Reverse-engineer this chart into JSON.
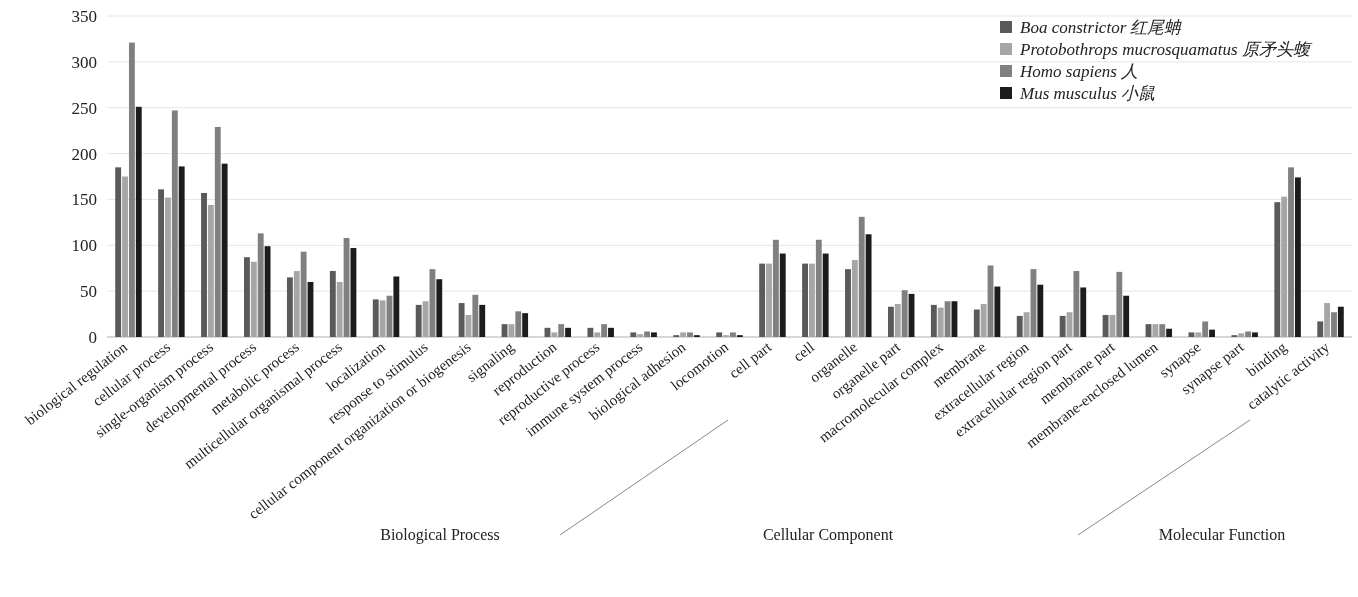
{
  "chart_data": {
    "type": "bar",
    "categories": [
      "biological regulation",
      "cellular process",
      "single-organism process",
      "developmental process",
      "metabolic process",
      "multicellular organismal process",
      "localization",
      "response to stimulus",
      "cellular component organization or biogenesis",
      "signaling",
      "reproduction",
      "reproductive process",
      "immune system process",
      "biological adhesion",
      "locomotion",
      "cell part",
      "cell",
      "organelle",
      "organelle part",
      "macromolecular complex",
      "membrane",
      "extracellular region",
      "extracellular region part",
      "membrane part",
      "membrane-enclosed lumen",
      "synapse",
      "synapse part",
      "binding",
      "catalytic activity"
    ],
    "series": [
      {
        "name": "Boa constrictor 红尾蚺",
        "color": "#5a5a5a",
        "values": [
          185,
          161,
          157,
          87,
          65,
          72,
          41,
          35,
          37,
          14,
          10,
          10,
          5,
          2,
          5,
          80,
          80,
          74,
          33,
          35,
          30,
          23,
          23,
          24,
          14,
          5,
          2,
          147,
          17
        ]
      },
      {
        "name": "Protobothrops mucrosquamatus 原矛头蝮",
        "color": "#a6a6a6",
        "values": [
          175,
          152,
          144,
          82,
          72,
          60,
          40,
          39,
          24,
          14,
          5,
          5,
          3,
          5,
          2,
          80,
          80,
          84,
          36,
          32,
          36,
          27,
          27,
          24,
          14,
          5,
          4,
          153,
          37
        ]
      },
      {
        "name": "Homo sapiens 人",
        "color": "#808080",
        "values": [
          321,
          247,
          229,
          113,
          93,
          108,
          45,
          74,
          46,
          28,
          14,
          14,
          6,
          5,
          5,
          106,
          106,
          131,
          51,
          39,
          78,
          74,
          72,
          71,
          14,
          17,
          6,
          185,
          27
        ]
      },
      {
        "name": "Mus musculus 小鼠",
        "color": "#1c1c1c",
        "values": [
          251,
          186,
          189,
          99,
          60,
          97,
          66,
          63,
          35,
          26,
          10,
          10,
          5,
          2,
          2,
          91,
          91,
          112,
          47,
          39,
          55,
          57,
          54,
          45,
          9,
          8,
          5,
          174,
          33
        ]
      }
    ],
    "ylim": [
      0,
      350
    ],
    "yticks": [
      0,
      50,
      100,
      150,
      200,
      250,
      300,
      350
    ],
    "grid": "y",
    "legend": "top right",
    "annotations": [
      "Biological Process",
      "Cellular Component",
      "Molecular Function"
    ]
  }
}
